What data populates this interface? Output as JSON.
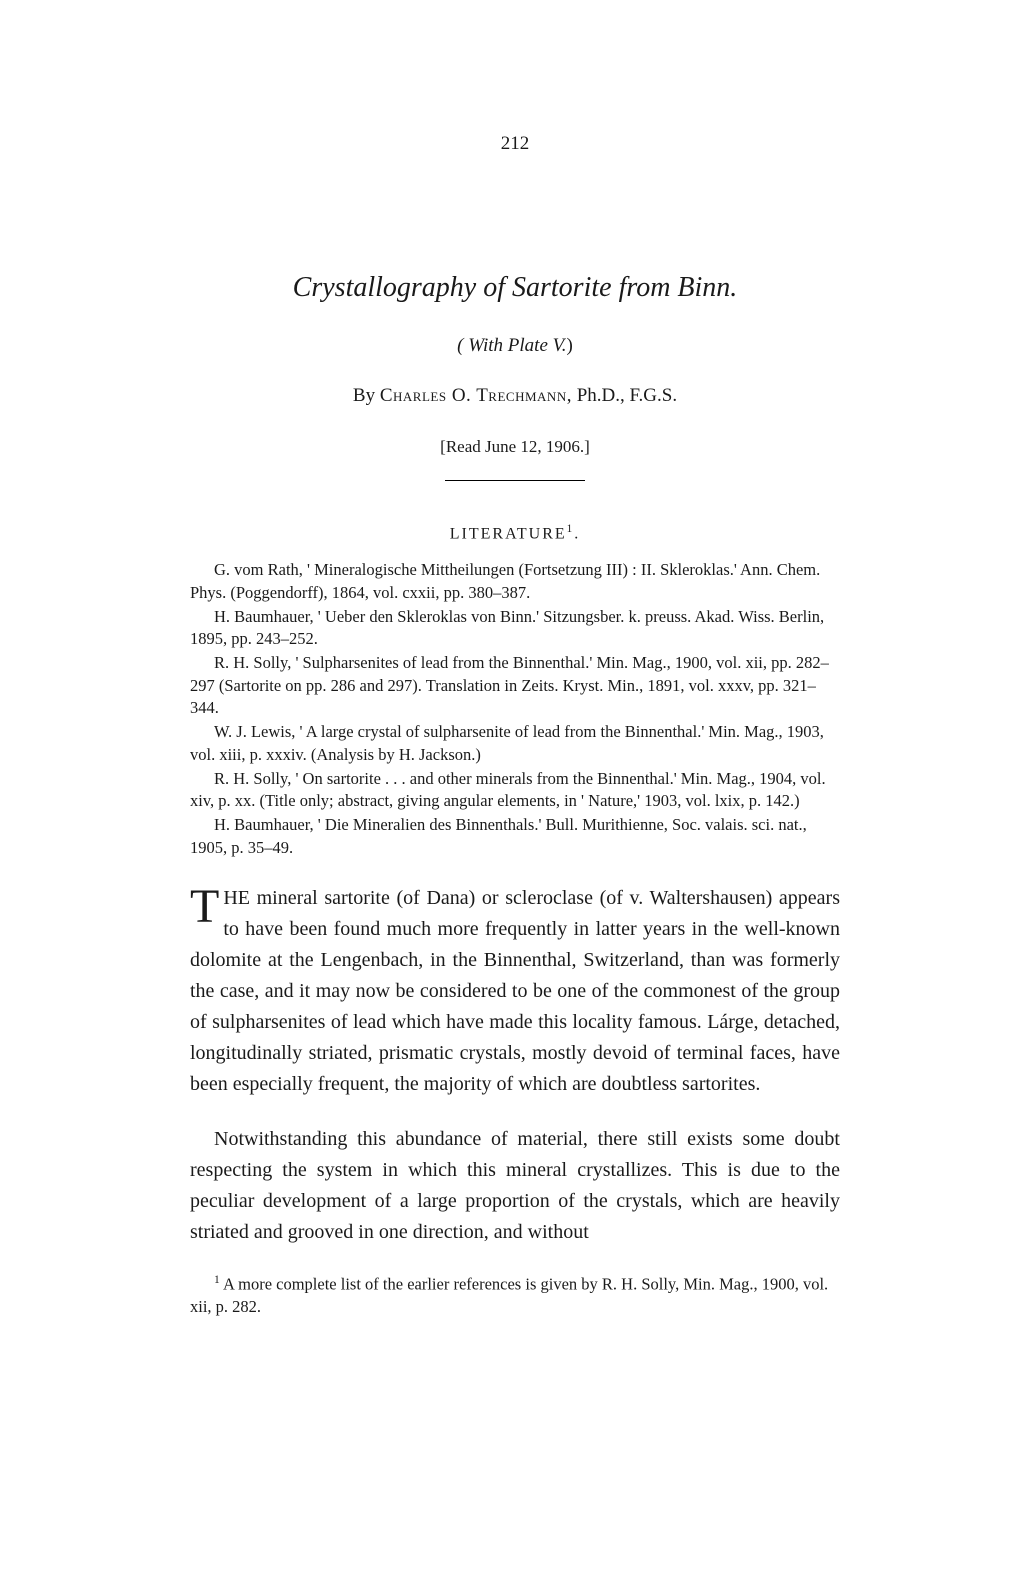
{
  "page_number": "212",
  "title": "Crystallography of Sartorite from Binn.",
  "plate_ref_prefix": "( With Plate V.",
  "plate_ref_suffix": ")",
  "byline_prefix": "By ",
  "byline_name": "Charles O. Trechmann,",
  "byline_suffix": " Ph.D., F.G.S.",
  "read_date": "[Read June 12, 1906.]",
  "lit_heading": "LITERATURE",
  "lit_heading_sup": "1",
  "lit_heading_dot": ".",
  "literature": [
    "G. vom Rath, ' Mineralogische Mittheilungen (Fortsetzung III) : II. Skleroklas.' Ann. Chem. Phys. (Poggendorff), 1864, vol. cxxii, pp. 380–387.",
    "H. Baumhauer, ' Ueber den Skleroklas von Binn.'  Sitzungsber. k. preuss. Akad. Wiss. Berlin, 1895, pp. 243–252.",
    "R. H. Solly, ' Sulpharsenites of lead from the Binnenthal.'  Min. Mag., 1900, vol. xii, pp. 282–297 (Sartorite on pp. 286 and 297).  Translation in Zeits. Kryst. Min., 1891, vol. xxxv, pp. 321–344.",
    "W. J. Lewis, ' A large crystal of sulpharsenite of lead from the Binnenthal.' Min. Mag., 1903, vol. xiii, p. xxxiv.  (Analysis by H. Jackson.)",
    "R. H. Solly, ' On sartorite . . . and other minerals from the Binnenthal.' Min. Mag., 1904, vol. xiv, p. xx. (Title only; abstract, giving angular elements, in ' Nature,' 1903, vol. lxix, p. 142.)",
    "H. Baumhauer, ' Die Mineralien des Binnenthals.'  Bull. Murithienne, Soc. valais. sci. nat., 1905, p. 35–49."
  ],
  "para1_dropcap": "T",
  "para1_rest": "HE mineral sartorite (of Dana) or scleroclase (of v. Waltershausen) appears to have been found much more frequently in latter years in the well-known dolomite at the Lengenbach, in the Binnenthal, Switzerland, than was formerly the case, and it may now be considered to be one of the commonest of the group of sulpharsenites of lead which have made this locality famous.  Lárge, detached, longitudinally striated, prismatic crystals, mostly devoid of terminal faces, have been especially frequent, the majority of which are doubtless sartorites.",
  "para2": "Notwithstanding this abundance of material, there still exists some doubt respecting the system in which this mineral crystallizes.  This is due to the peculiar development of a large proportion of the crystals, which are heavily striated and grooved in one direction, and without",
  "footnote_marker": "1",
  "footnote_text": " A more complete list of the earlier references is given by R. H. Solly, Min. Mag., 1900, vol. xii, p. 282."
}
